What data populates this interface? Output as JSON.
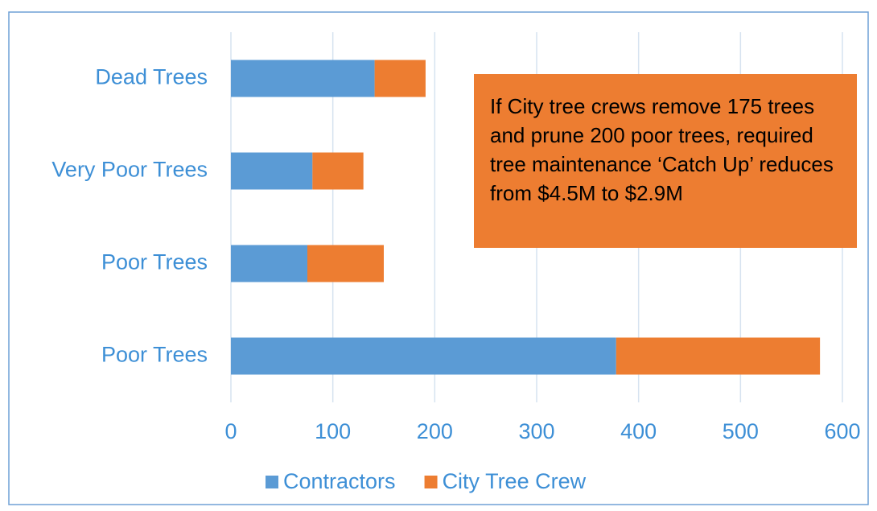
{
  "chart_data": {
    "type": "stacked_bar_horizontal",
    "categories": [
      "Dead Trees",
      "Very Poor Trees",
      "Poor Trees",
      "Poor Trees"
    ],
    "series": [
      {
        "name": "Contractors",
        "color": "#5b9bd5",
        "values": [
          141,
          80,
          75,
          378
        ]
      },
      {
        "name": "City Tree Crew",
        "color": "#ed7d31",
        "values": [
          50,
          50,
          75,
          200
        ]
      }
    ],
    "xlim": [
      0,
      600
    ],
    "xticks": [
      0,
      100,
      200,
      300,
      400,
      500,
      600
    ],
    "grid": true,
    "annotation": "If City tree crews remove 175 trees and prune 200 poor trees, required tree maintenance ‘Catch Up’ reduces from $4.5M to $2.9M"
  }
}
